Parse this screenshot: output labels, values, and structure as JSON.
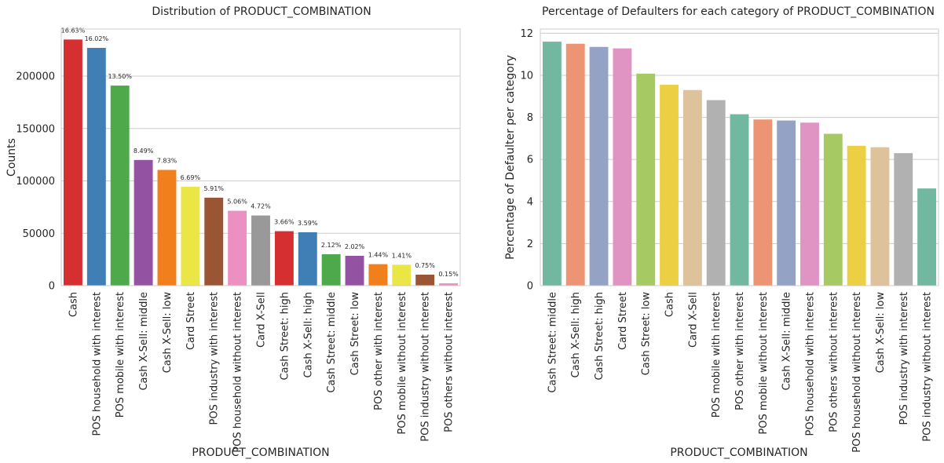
{
  "chart_data": [
    {
      "type": "bar",
      "title": "Distribution of PRODUCT_COMBINATION",
      "xlabel": "PRODUCT_COMBINATION",
      "ylabel": "Counts",
      "ylim": [
        0,
        245000
      ],
      "yticks": [
        0,
        50000,
        100000,
        150000,
        200000
      ],
      "grid": true,
      "categories": [
        "Cash",
        "POS household with interest",
        "POS mobile with interest",
        "Cash X-Sell: middle",
        "Cash X-Sell: low",
        "Card Street",
        "POS industry with interest",
        "POS household without interest",
        "Card X-Sell",
        "Cash Street: high",
        "Cash X-Sell: high",
        "Cash Street: middle",
        "Cash Street: low",
        "POS other with interest",
        "POS mobile without interest",
        "POS industry without interest",
        "POS others without interest"
      ],
      "values": [
        235000,
        227000,
        191000,
        120000,
        110500,
        94500,
        84000,
        71500,
        67000,
        52000,
        51000,
        30000,
        28500,
        20500,
        20000,
        10500,
        2200
      ],
      "data_labels": [
        "16.63%",
        "16.02%",
        "13.50%",
        "8.49%",
        "7.83%",
        "6.69%",
        "5.91%",
        "5.06%",
        "4.72%",
        "3.66%",
        "3.59%",
        "2.12%",
        "2.02%",
        "1.44%",
        "1.41%",
        "0.75%",
        "0.15%"
      ],
      "colors": [
        "#d62f32",
        "#3f7fb5",
        "#4ea94a",
        "#9452a3",
        "#f07f1c",
        "#e9e645",
        "#9a5634",
        "#ec90c2",
        "#999999",
        "#d62f32",
        "#3f7fb5",
        "#4ea94a",
        "#9452a3",
        "#f07f1c",
        "#e9e645",
        "#9a5634",
        "#ec90c2"
      ]
    },
    {
      "type": "bar",
      "title": "Percentage of Defaulters for each category of PRODUCT_COMBINATION",
      "xlabel": "PRODUCT_COMBINATION",
      "ylabel": "Percentage of Defaulter per category",
      "ylim": [
        0,
        12.2
      ],
      "yticks": [
        0,
        2,
        4,
        6,
        8,
        10,
        12
      ],
      "grid": true,
      "categories": [
        "Cash Street: middle",
        "Cash X-Sell: high",
        "Cash Street: high",
        "Card Street",
        "Cash Street: low",
        "Cash",
        "Card X-Sell",
        "POS mobile with interest",
        "POS other with interest",
        "POS mobile without interest",
        "Cash X-Sell: middle",
        "POS household with interest",
        "POS others without interest",
        "POS household without interest",
        "Cash X-Sell: low",
        "POS industry with interest",
        "POS industry without interest"
      ],
      "values": [
        11.6,
        11.5,
        11.35,
        11.28,
        10.08,
        9.55,
        9.3,
        8.82,
        8.15,
        7.9,
        7.85,
        7.75,
        7.22,
        6.65,
        6.58,
        6.3,
        4.62
      ],
      "colors": [
        "#72b8a0",
        "#ec9473",
        "#94a3c5",
        "#df94c4",
        "#a7c963",
        "#edcf43",
        "#dec29c",
        "#b1b1b1",
        "#72b8a0",
        "#ec9473",
        "#94a3c5",
        "#df94c4",
        "#a7c963",
        "#edcf43",
        "#dec29c",
        "#b1b1b1",
        "#72b8a0"
      ]
    }
  ]
}
